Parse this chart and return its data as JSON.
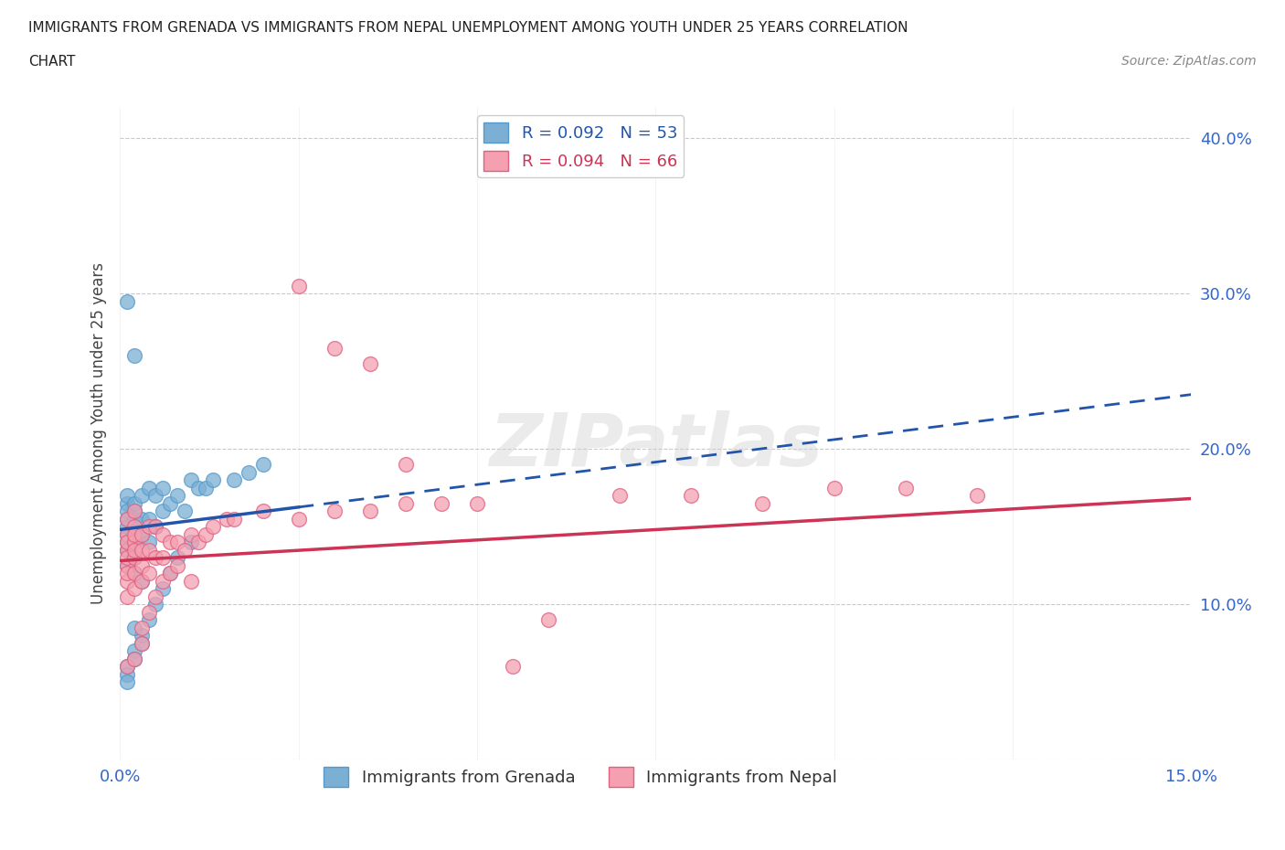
{
  "title_line1": "IMMIGRANTS FROM GRENADA VS IMMIGRANTS FROM NEPAL UNEMPLOYMENT AMONG YOUTH UNDER 25 YEARS CORRELATION",
  "title_line2": "CHART",
  "source_text": "Source: ZipAtlas.com",
  "ylabel": "Unemployment Among Youth under 25 years",
  "xlim": [
    0.0,
    0.15
  ],
  "ylim": [
    0.0,
    0.42
  ],
  "xticks": [
    0.0,
    0.025,
    0.05,
    0.075,
    0.1,
    0.125,
    0.15
  ],
  "xticklabels": [
    "0.0%",
    "",
    "",
    "",
    "",
    "",
    "15.0%"
  ],
  "yticks": [
    0.0,
    0.1,
    0.2,
    0.3,
    0.4
  ],
  "yticklabels": [
    "",
    "10.0%",
    "20.0%",
    "30.0%",
    "40.0%"
  ],
  "grenada_color": "#7bafd4",
  "grenada_edge": "#5599cc",
  "nepal_color": "#f4a0b0",
  "nepal_edge": "#e06080",
  "trend_grenada_color": "#2255aa",
  "trend_nepal_color": "#cc3355",
  "legend_R_grenada": "R = 0.092",
  "legend_N_grenada": "N = 53",
  "legend_R_nepal": "R = 0.094",
  "legend_N_nepal": "N = 66",
  "watermark": "ZIPatlas",
  "grenada_x": [
    0.001,
    0.001,
    0.001,
    0.001,
    0.001,
    0.001,
    0.001,
    0.001,
    0.001,
    0.001,
    0.002,
    0.002,
    0.002,
    0.002,
    0.002,
    0.002,
    0.002,
    0.002,
    0.003,
    0.003,
    0.003,
    0.003,
    0.003,
    0.004,
    0.004,
    0.004,
    0.004,
    0.005,
    0.005,
    0.005,
    0.006,
    0.006,
    0.006,
    0.007,
    0.007,
    0.008,
    0.008,
    0.009,
    0.01,
    0.01,
    0.011,
    0.012,
    0.013,
    0.016,
    0.018,
    0.02,
    0.001,
    0.002,
    0.001,
    0.002,
    0.003,
    0.002,
    0.001
  ],
  "grenada_y": [
    0.155,
    0.145,
    0.135,
    0.125,
    0.165,
    0.15,
    0.14,
    0.16,
    0.17,
    0.06,
    0.155,
    0.16,
    0.165,
    0.145,
    0.14,
    0.13,
    0.12,
    0.07,
    0.155,
    0.17,
    0.145,
    0.115,
    0.08,
    0.175,
    0.155,
    0.14,
    0.09,
    0.17,
    0.15,
    0.1,
    0.175,
    0.16,
    0.11,
    0.165,
    0.12,
    0.17,
    0.13,
    0.16,
    0.18,
    0.14,
    0.175,
    0.175,
    0.18,
    0.18,
    0.185,
    0.19,
    0.295,
    0.26,
    0.055,
    0.065,
    0.075,
    0.085,
    0.05
  ],
  "nepal_x": [
    0.001,
    0.001,
    0.001,
    0.001,
    0.001,
    0.001,
    0.001,
    0.001,
    0.001,
    0.001,
    0.002,
    0.002,
    0.002,
    0.002,
    0.002,
    0.002,
    0.002,
    0.002,
    0.002,
    0.003,
    0.003,
    0.003,
    0.003,
    0.003,
    0.003,
    0.004,
    0.004,
    0.004,
    0.004,
    0.005,
    0.005,
    0.005,
    0.006,
    0.006,
    0.006,
    0.007,
    0.007,
    0.008,
    0.008,
    0.009,
    0.01,
    0.01,
    0.011,
    0.012,
    0.013,
    0.015,
    0.016,
    0.02,
    0.025,
    0.03,
    0.035,
    0.04,
    0.045,
    0.05,
    0.055,
    0.06,
    0.07,
    0.08,
    0.09,
    0.1,
    0.11,
    0.12,
    0.025,
    0.03,
    0.035,
    0.04
  ],
  "nepal_y": [
    0.145,
    0.135,
    0.125,
    0.115,
    0.105,
    0.155,
    0.14,
    0.13,
    0.12,
    0.06,
    0.15,
    0.14,
    0.13,
    0.12,
    0.11,
    0.16,
    0.145,
    0.135,
    0.065,
    0.145,
    0.135,
    0.125,
    0.115,
    0.075,
    0.085,
    0.15,
    0.135,
    0.12,
    0.095,
    0.15,
    0.13,
    0.105,
    0.145,
    0.13,
    0.115,
    0.14,
    0.12,
    0.14,
    0.125,
    0.135,
    0.145,
    0.115,
    0.14,
    0.145,
    0.15,
    0.155,
    0.155,
    0.16,
    0.155,
    0.16,
    0.16,
    0.165,
    0.165,
    0.165,
    0.06,
    0.09,
    0.17,
    0.17,
    0.165,
    0.175,
    0.175,
    0.17,
    0.305,
    0.265,
    0.255,
    0.19
  ],
  "trend_grenada_x0": 0.0,
  "trend_grenada_y0": 0.148,
  "trend_grenada_x1": 0.15,
  "trend_grenada_y1": 0.235,
  "trend_grenada_solid_x1": 0.025,
  "trend_nepal_x0": 0.0,
  "trend_nepal_y0": 0.128,
  "trend_nepal_x1": 0.15,
  "trend_nepal_y1": 0.168
}
